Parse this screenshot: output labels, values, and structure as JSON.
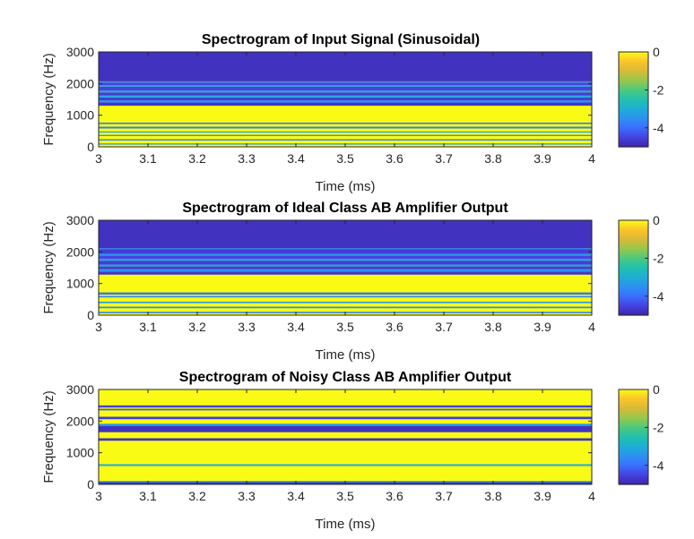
{
  "chart_data": [
    {
      "type": "heatmap",
      "title": "Spectrogram of Input Signal (Sinusoidal)",
      "xlabel": "Time (ms)",
      "ylabel": "Frequency (Hz)",
      "xlim": [
        3,
        4
      ],
      "ylim": [
        0,
        3000
      ],
      "xticks": [
        "3",
        "3.1",
        "3.2",
        "3.3",
        "3.4",
        "3.5",
        "3.6",
        "3.7",
        "3.8",
        "3.9",
        "4"
      ],
      "yticks": [
        "0",
        "1000",
        "2000",
        "3000"
      ],
      "colorbar": {
        "range": [
          -5,
          0
        ],
        "ticks": [
          "0",
          "-2",
          "-4"
        ]
      },
      "bands": [
        {
          "from": 0,
          "to": 70,
          "value": 0
        },
        {
          "from": 70,
          "to": 110,
          "value": -3.5
        },
        {
          "from": 110,
          "to": 200,
          "value": 0
        },
        {
          "from": 200,
          "to": 240,
          "value": -3.8
        },
        {
          "from": 240,
          "to": 340,
          "value": 0
        },
        {
          "from": 340,
          "to": 380,
          "value": -3.5
        },
        {
          "from": 380,
          "to": 450,
          "value": 0
        },
        {
          "from": 450,
          "to": 490,
          "value": -3.2
        },
        {
          "from": 490,
          "to": 580,
          "value": 0
        },
        {
          "from": 580,
          "to": 640,
          "value": -3.8
        },
        {
          "from": 640,
          "to": 720,
          "value": 0
        },
        {
          "from": 720,
          "to": 770,
          "value": -3.8
        },
        {
          "from": 770,
          "to": 1300,
          "value": 0
        },
        {
          "from": 1300,
          "to": 1400,
          "value": -4.7
        },
        {
          "from": 1400,
          "to": 1470,
          "value": -3.5
        },
        {
          "from": 1470,
          "to": 1560,
          "value": -4.6
        },
        {
          "from": 1560,
          "to": 1620,
          "value": -3.2
        },
        {
          "from": 1620,
          "to": 1720,
          "value": -4.6
        },
        {
          "from": 1720,
          "to": 1780,
          "value": -3.2
        },
        {
          "from": 1780,
          "to": 1900,
          "value": -4.5
        },
        {
          "from": 1900,
          "to": 1950,
          "value": -3.4
        },
        {
          "from": 1950,
          "to": 2030,
          "value": -4.5
        },
        {
          "from": 2030,
          "to": 2070,
          "value": -3.6
        },
        {
          "from": 2070,
          "to": 3000,
          "value": -4.8
        }
      ]
    },
    {
      "type": "heatmap",
      "title": "Spectrogram of Ideal Class AB Amplifier Output",
      "xlabel": "Time (ms)",
      "ylabel": "Frequency (Hz)",
      "xlim": [
        3,
        4
      ],
      "ylim": [
        0,
        3000
      ],
      "xticks": [
        "3",
        "3.1",
        "3.2",
        "3.3",
        "3.4",
        "3.5",
        "3.6",
        "3.7",
        "3.8",
        "3.9",
        "4"
      ],
      "yticks": [
        "0",
        "1000",
        "2000",
        "3000"
      ],
      "colorbar": {
        "range": [
          -5,
          0
        ],
        "ticks": [
          "0",
          "-2",
          "-4"
        ]
      },
      "bands": [
        {
          "from": 0,
          "to": 60,
          "value": 0
        },
        {
          "from": 60,
          "to": 110,
          "value": -3.6
        },
        {
          "from": 110,
          "to": 220,
          "value": 0
        },
        {
          "from": 220,
          "to": 270,
          "value": -3.6
        },
        {
          "from": 270,
          "to": 380,
          "value": 0
        },
        {
          "from": 380,
          "to": 430,
          "value": -3.4
        },
        {
          "from": 430,
          "to": 560,
          "value": 0
        },
        {
          "from": 560,
          "to": 610,
          "value": -3.6
        },
        {
          "from": 610,
          "to": 650,
          "value": 0
        },
        {
          "from": 650,
          "to": 720,
          "value": -3.9
        },
        {
          "from": 720,
          "to": 1280,
          "value": 0
        },
        {
          "from": 1280,
          "to": 1380,
          "value": -4.7
        },
        {
          "from": 1380,
          "to": 1450,
          "value": -3.5
        },
        {
          "from": 1450,
          "to": 1540,
          "value": -4.6
        },
        {
          "from": 1540,
          "to": 1600,
          "value": -3.2
        },
        {
          "from": 1600,
          "to": 1720,
          "value": -4.6
        },
        {
          "from": 1720,
          "to": 1780,
          "value": -3.3
        },
        {
          "from": 1780,
          "to": 1880,
          "value": -4.5
        },
        {
          "from": 1880,
          "to": 1940,
          "value": -3.4
        },
        {
          "from": 1940,
          "to": 2080,
          "value": -4.6
        },
        {
          "from": 2080,
          "to": 2120,
          "value": -3.8
        },
        {
          "from": 2120,
          "to": 3000,
          "value": -4.8
        }
      ]
    },
    {
      "type": "heatmap",
      "title": "Spectrogram of Noisy Class AB Amplifier Output",
      "xlabel": "Time (ms)",
      "ylabel": "Frequency (Hz)",
      "xlim": [
        3,
        4
      ],
      "ylim": [
        0,
        3000
      ],
      "xticks": [
        "3",
        "3.1",
        "3.2",
        "3.3",
        "3.4",
        "3.5",
        "3.6",
        "3.7",
        "3.8",
        "3.9",
        "4"
      ],
      "yticks": [
        "0",
        "1000",
        "2000",
        "3000"
      ],
      "colorbar": {
        "range": [
          -5,
          0
        ],
        "ticks": [
          "0",
          "-2",
          "-4"
        ]
      },
      "bands": [
        {
          "from": 0,
          "to": 70,
          "value": -4.8
        },
        {
          "from": 70,
          "to": 110,
          "value": -3.0
        },
        {
          "from": 110,
          "to": 580,
          "value": 0
        },
        {
          "from": 580,
          "to": 640,
          "value": -3.0
        },
        {
          "from": 640,
          "to": 1380,
          "value": 0
        },
        {
          "from": 1380,
          "to": 1460,
          "value": -4.8
        },
        {
          "from": 1460,
          "to": 1650,
          "value": 0
        },
        {
          "from": 1650,
          "to": 1850,
          "value": -4.8
        },
        {
          "from": 1850,
          "to": 1920,
          "value": -3.4
        },
        {
          "from": 1920,
          "to": 2060,
          "value": 0
        },
        {
          "from": 2060,
          "to": 2140,
          "value": -4.6
        },
        {
          "from": 2140,
          "to": 2340,
          "value": 0
        },
        {
          "from": 2340,
          "to": 2390,
          "value": -4.3
        },
        {
          "from": 2390,
          "to": 2430,
          "value": 0
        },
        {
          "from": 2430,
          "to": 2500,
          "value": -4.6
        },
        {
          "from": 2500,
          "to": 3000,
          "value": 0
        }
      ]
    }
  ],
  "colormap": [
    "#3e26a8",
    "#4543e2",
    "#3b6ffd",
    "#2c92ef",
    "#1eaed4",
    "#21c0ae",
    "#4dc97e",
    "#97c84d",
    "#d7ba37",
    "#fbc42a",
    "#f9fb15"
  ]
}
